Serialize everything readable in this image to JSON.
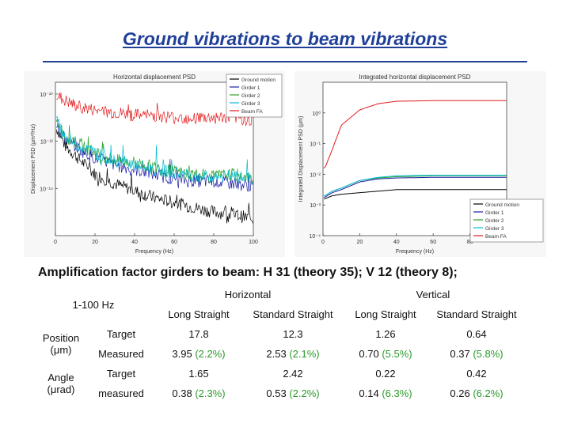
{
  "slide": {
    "title": "Ground vibrations to beam vibrations",
    "caption": "Amplification factor girders to beam: H 31 (theory 35); V 12 (theory 8);"
  },
  "colors": {
    "ground": "#000000",
    "girder1": "#1a1aa6",
    "girder2": "#2ca02c",
    "girder3": "#00bcd4",
    "beam": "#e31a1c",
    "title": "#1f3f99",
    "pct": "#2a9a2a"
  },
  "chart_data": [
    {
      "type": "line",
      "title": "Horizontal displacement PSD",
      "xlabel": "Frequency (Hz)",
      "ylabel": "Displacement PSD (µm²/Hz)",
      "xlim": [
        0,
        100
      ],
      "ylog": true,
      "ylim": [
        -16,
        -9.5
      ],
      "x_ticks": [
        "0",
        "20",
        "40",
        "60",
        "80",
        "100"
      ],
      "y_ticks": [
        {
          "label": "10⁻¹⁰",
          "v": -10
        },
        {
          "label": "10⁻¹²",
          "v": -12
        },
        {
          "label": "10⁻¹⁴",
          "v": -14
        }
      ],
      "legend": [
        "Ground motion",
        "Girder 1",
        "Girder 2",
        "Girder 3",
        "Beam FA"
      ],
      "legend_position": "top-right",
      "series": [
        {
          "name": "Ground motion",
          "color_key": "ground",
          "x": [
            1,
            5,
            10,
            15,
            20,
            30,
            40,
            50,
            60,
            70,
            80,
            90,
            100
          ],
          "log10_values": [
            -11.5,
            -12.2,
            -12.6,
            -13.0,
            -13.4,
            -13.8,
            -14.1,
            -14.4,
            -14.6,
            -14.8,
            -15.0,
            -15.1,
            -15.3
          ]
        },
        {
          "name": "Girder 1",
          "color_key": "girder1",
          "x": [
            1,
            5,
            10,
            15,
            20,
            30,
            40,
            50,
            60,
            70,
            80,
            90,
            100
          ],
          "log10_values": [
            -11.3,
            -11.9,
            -12.2,
            -12.5,
            -12.7,
            -13.0,
            -13.2,
            -13.4,
            -13.6,
            -13.7,
            -13.7,
            -13.8,
            -13.9
          ]
        },
        {
          "name": "Girder 2",
          "color_key": "girder2",
          "x": [
            1,
            5,
            10,
            15,
            20,
            30,
            40,
            50,
            60,
            70,
            80,
            90,
            100
          ],
          "log10_values": [
            -11.2,
            -11.8,
            -12.0,
            -12.3,
            -12.5,
            -12.8,
            -12.9,
            -13.1,
            -13.3,
            -13.4,
            -13.5,
            -13.4,
            -13.6
          ]
        },
        {
          "name": "Girder 3",
          "color_key": "girder3",
          "x": [
            1,
            5,
            10,
            15,
            20,
            30,
            40,
            50,
            60,
            70,
            80,
            90,
            100
          ],
          "log10_values": [
            -11.2,
            -11.8,
            -12.1,
            -12.3,
            -12.5,
            -12.8,
            -13.0,
            -13.2,
            -13.3,
            -13.5,
            -13.5,
            -13.5,
            -13.6
          ]
        },
        {
          "name": "Beam FA",
          "color_key": "beam",
          "x": [
            1,
            5,
            10,
            15,
            20,
            30,
            40,
            50,
            60,
            70,
            80,
            90,
            100
          ],
          "log10_values": [
            -10.1,
            -10.3,
            -10.5,
            -10.6,
            -10.7,
            -10.8,
            -10.9,
            -10.9,
            -11.0,
            -11.0,
            -11.0,
            -11.0,
            -11.1
          ]
        }
      ]
    },
    {
      "type": "line",
      "title": "Integrated horizontal displacement PSD",
      "xlabel": "Frequency (Hz)",
      "ylabel": "Integrated Displacement PSD (µm)",
      "xlim": [
        0,
        100
      ],
      "ylog": true,
      "ylim": [
        -4,
        1
      ],
      "x_ticks": [
        "0",
        "20",
        "40",
        "60",
        "80"
      ],
      "y_ticks": [
        {
          "label": "10⁰",
          "v": 0
        },
        {
          "label": "10⁻¹",
          "v": -1
        },
        {
          "label": "10⁻²",
          "v": -2
        },
        {
          "label": "10⁻³",
          "v": -3
        },
        {
          "label": "10⁻⁴",
          "v": -4
        }
      ],
      "legend": [
        "Ground motion",
        "Girder 1",
        "Girder 2",
        "Girder 3",
        "Beam FA"
      ],
      "legend_position": "bottom-right",
      "series": [
        {
          "name": "Ground motion",
          "color_key": "ground",
          "x": [
            1,
            5,
            10,
            20,
            30,
            40,
            60,
            100
          ],
          "log10_values": [
            -2.8,
            -2.7,
            -2.65,
            -2.6,
            -2.55,
            -2.5,
            -2.5,
            -2.5
          ]
        },
        {
          "name": "Girder 1",
          "color_key": "girder1",
          "x": [
            1,
            5,
            10,
            20,
            30,
            40,
            60,
            100
          ],
          "log10_values": [
            -2.75,
            -2.6,
            -2.5,
            -2.25,
            -2.15,
            -2.12,
            -2.1,
            -2.1
          ]
        },
        {
          "name": "Girder 2",
          "color_key": "girder2",
          "x": [
            1,
            5,
            10,
            20,
            30,
            40,
            60,
            100
          ],
          "log10_values": [
            -2.7,
            -2.55,
            -2.45,
            -2.2,
            -2.12,
            -2.08,
            -2.05,
            -2.05
          ]
        },
        {
          "name": "Girder 3",
          "color_key": "girder3",
          "x": [
            1,
            5,
            10,
            20,
            30,
            40,
            60,
            100
          ],
          "log10_values": [
            -2.7,
            -2.55,
            -2.45,
            -2.2,
            -2.1,
            -2.05,
            -2.03,
            -2.03
          ]
        },
        {
          "name": "Beam FA",
          "color_key": "beam",
          "x": [
            1,
            5,
            10,
            20,
            30,
            40,
            60,
            100
          ],
          "log10_values": [
            -1.8,
            -1.2,
            -0.4,
            0.1,
            0.3,
            0.38,
            0.4,
            0.4
          ]
        }
      ]
    }
  ],
  "table": {
    "freq_label": "1-100 Hz",
    "groups": [
      "Horizontal",
      "Vertical"
    ],
    "columns": [
      "Long Straight",
      "Standard Straight",
      "Long Straight",
      "Standard Straight"
    ],
    "rows": [
      {
        "quantity": "Position (μm)",
        "type": "Target",
        "cells": [
          {
            "v": "17.8",
            "p": ""
          },
          {
            "v": "12.3",
            "p": ""
          },
          {
            "v": "1.26",
            "p": ""
          },
          {
            "v": "0.64",
            "p": ""
          }
        ]
      },
      {
        "quantity": "",
        "type": "Measured",
        "cells": [
          {
            "v": "3.95",
            "p": "(2.2%)"
          },
          {
            "v": "2.53",
            "p": "(2.1%)"
          },
          {
            "v": "0.70",
            "p": "(5.5%)"
          },
          {
            "v": "0.37",
            "p": "(5.8%)"
          }
        ]
      },
      {
        "quantity": "Angle (μrad)",
        "type": "Target",
        "cells": [
          {
            "v": "1.65",
            "p": ""
          },
          {
            "v": "2.42",
            "p": ""
          },
          {
            "v": "0.22",
            "p": ""
          },
          {
            "v": "0.42",
            "p": ""
          }
        ]
      },
      {
        "quantity": "",
        "type": "measured",
        "cells": [
          {
            "v": "0.38",
            "p": "(2.3%)"
          },
          {
            "v": "0.53",
            "p": "(2.2%)"
          },
          {
            "v": "0.14",
            "p": "(6.3%)"
          },
          {
            "v": "0.26",
            "p": "(6.2%)"
          }
        ]
      }
    ]
  }
}
